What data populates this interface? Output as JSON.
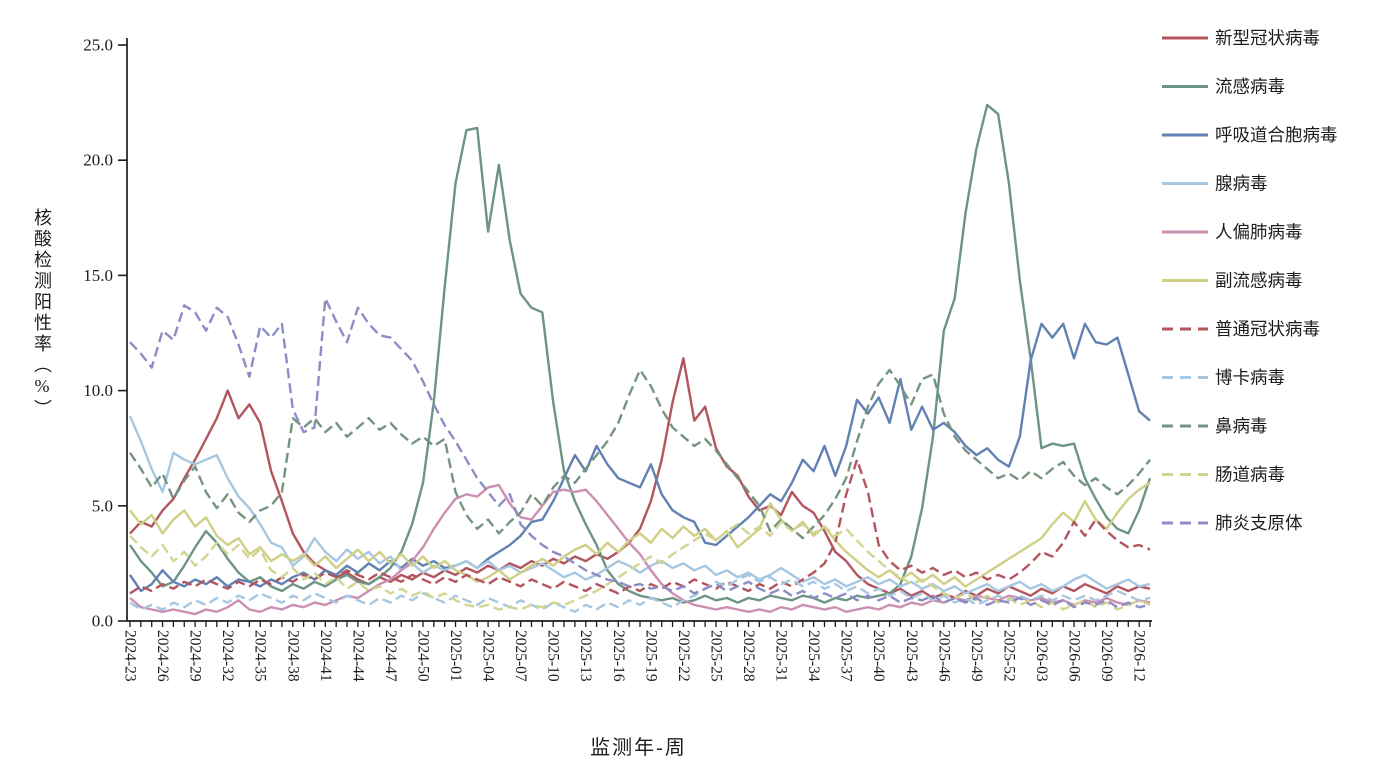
{
  "page": {
    "background": "#ffffff"
  },
  "chart_data": {
    "type": "line",
    "title": "",
    "xlabel": "监测年-周",
    "ylabel": "核酸检测阳性率（%）",
    "ylim": [
      0,
      25
    ],
    "yticks": [
      "0.0",
      "5.0",
      "10.0",
      "15.0",
      "20.0",
      "25.0"
    ],
    "grid": false,
    "legend_position": "right",
    "x_label_every": 3,
    "x": [
      "2024-23",
      "2024-24",
      "2024-25",
      "2024-26",
      "2024-27",
      "2024-28",
      "2024-29",
      "2024-30",
      "2024-31",
      "2024-32",
      "2024-33",
      "2024-34",
      "2024-35",
      "2024-36",
      "2024-37",
      "2024-38",
      "2024-39",
      "2024-40",
      "2024-41",
      "2024-42",
      "2024-43",
      "2024-44",
      "2024-45",
      "2024-46",
      "2024-47",
      "2024-48",
      "2024-49",
      "2024-50",
      "2024-51",
      "2024-52",
      "2025-01",
      "2025-02",
      "2025-03",
      "2025-04",
      "2025-05",
      "2025-06",
      "2025-07",
      "2025-08",
      "2025-09",
      "2025-10",
      "2025-11",
      "2025-12",
      "2025-13",
      "2025-14",
      "2025-15",
      "2025-16",
      "2025-17",
      "2025-18",
      "2025-19",
      "2025-20",
      "2025-21",
      "2025-22",
      "2025-23",
      "2025-24",
      "2025-25",
      "2025-26",
      "2025-27",
      "2025-28",
      "2025-29",
      "2025-30",
      "2025-31",
      "2025-32",
      "2025-33",
      "2025-34",
      "2025-35",
      "2025-36",
      "2025-37",
      "2025-38",
      "2025-39",
      "2025-40",
      "2025-41",
      "2025-42",
      "2025-43",
      "2025-44",
      "2025-45",
      "2025-46",
      "2025-47",
      "2025-48",
      "2025-49",
      "2025-50",
      "2025-51",
      "2025-52",
      "2026-01",
      "2026-02",
      "2026-03",
      "2026-04",
      "2026-05",
      "2026-06",
      "2026-07",
      "2026-08",
      "2026-09",
      "2026-10",
      "2026-11",
      "2026-12",
      "2026-13"
    ],
    "series": [
      {
        "id": "covid",
        "name": "新型冠状病毒",
        "color": "#b2555f",
        "dashed": false,
        "values": [
          3.8,
          4.3,
          4.1,
          4.8,
          5.3,
          6.2,
          7.0,
          7.9,
          8.8,
          10.0,
          8.8,
          9.4,
          8.6,
          6.5,
          5.2,
          3.8,
          3.0,
          2.5,
          2.2,
          1.9,
          2.1,
          1.8,
          1.6,
          1.9,
          1.7,
          2.0,
          1.8,
          2.1,
          1.9,
          2.2,
          2.0,
          2.3,
          2.1,
          2.4,
          2.2,
          2.5,
          2.3,
          2.6,
          2.4,
          2.7,
          2.5,
          2.8,
          2.6,
          2.9,
          2.7,
          3.0,
          3.4,
          4.0,
          5.2,
          7.0,
          9.5,
          11.4,
          8.7,
          9.3,
          7.5,
          6.7,
          6.3,
          5.4,
          4.8,
          5.0,
          4.6,
          5.6,
          5.0,
          4.7,
          3.9,
          3.0,
          2.6,
          2.0,
          1.6,
          1.4,
          1.2,
          1.4,
          1.1,
          1.3,
          1.0,
          1.2,
          1.0,
          1.3,
          1.1,
          1.4,
          1.2,
          1.5,
          1.3,
          1.1,
          1.4,
          1.2,
          1.5,
          1.3,
          1.6,
          1.4,
          1.2,
          1.5,
          1.3,
          1.5,
          1.4
        ]
      },
      {
        "id": "flu",
        "name": "流感病毒",
        "color": "#6d9484",
        "dashed": false,
        "values": [
          3.3,
          2.6,
          2.1,
          1.5,
          1.7,
          2.4,
          3.2,
          3.9,
          3.4,
          2.7,
          2.1,
          1.7,
          1.9,
          1.5,
          1.3,
          1.6,
          1.4,
          1.7,
          1.5,
          1.8,
          2.0,
          1.7,
          1.6,
          1.9,
          2.3,
          3.0,
          4.2,
          6.0,
          9.5,
          14.5,
          19.0,
          21.3,
          21.4,
          16.9,
          19.8,
          16.5,
          14.2,
          13.6,
          13.4,
          9.5,
          6.5,
          5.2,
          4.2,
          3.3,
          2.2,
          1.6,
          1.3,
          1.1,
          1.0,
          0.9,
          1.0,
          0.8,
          0.9,
          1.1,
          0.9,
          1.0,
          0.8,
          1.0,
          0.9,
          1.1,
          1.0,
          0.9,
          1.1,
          1.0,
          0.8,
          1.0,
          0.9,
          1.1,
          1.0,
          1.1,
          1.2,
          1.6,
          2.8,
          4.9,
          8.0,
          12.6,
          14.0,
          17.7,
          20.5,
          22.4,
          22.0,
          19.0,
          14.8,
          11.4,
          7.5,
          7.7,
          7.6,
          7.7,
          6.2,
          5.3,
          4.5,
          4.0,
          3.8,
          4.8,
          6.2
        ]
      },
      {
        "id": "rsv",
        "name": "呼吸道合胞病毒",
        "color": "#6081b1",
        "dashed": false,
        "values": [
          2.0,
          1.3,
          1.6,
          2.2,
          1.7,
          1.5,
          1.8,
          1.6,
          1.9,
          1.5,
          1.8,
          1.7,
          1.5,
          1.8,
          1.6,
          1.9,
          2.1,
          1.8,
          2.2,
          2.0,
          2.4,
          2.1,
          2.5,
          2.2,
          2.6,
          2.3,
          2.7,
          2.4,
          2.6,
          2.3,
          2.4,
          2.6,
          2.3,
          2.7,
          3.0,
          3.3,
          3.7,
          4.3,
          4.4,
          5.2,
          6.2,
          7.2,
          6.5,
          7.6,
          6.8,
          6.2,
          6.0,
          5.8,
          6.8,
          5.5,
          4.8,
          4.5,
          4.3,
          3.4,
          3.3,
          3.7,
          4.1,
          4.5,
          5.0,
          5.5,
          5.2,
          6.0,
          7.0,
          6.5,
          7.6,
          6.3,
          7.6,
          9.6,
          9.0,
          9.7,
          8.6,
          10.5,
          8.3,
          9.3,
          8.3,
          8.6,
          8.2,
          7.6,
          7.2,
          7.5,
          7.0,
          6.7,
          8.0,
          11.3,
          12.9,
          12.3,
          12.9,
          11.4,
          12.9,
          12.1,
          12.0,
          12.3,
          10.7,
          9.1,
          8.7
        ]
      },
      {
        "id": "adenovirus",
        "name": "腺病毒",
        "color": "#a6c7e2",
        "dashed": false,
        "values": [
          8.9,
          7.8,
          6.6,
          5.6,
          7.3,
          7.0,
          6.8,
          7.0,
          7.2,
          6.2,
          5.4,
          4.9,
          4.2,
          3.4,
          3.2,
          2.4,
          2.8,
          3.6,
          3.0,
          2.6,
          3.1,
          2.7,
          3.0,
          2.5,
          2.8,
          2.2,
          2.5,
          2.1,
          2.4,
          2.2,
          2.4,
          2.6,
          2.3,
          2.6,
          2.2,
          2.4,
          2.1,
          2.3,
          2.5,
          2.2,
          1.9,
          2.1,
          1.8,
          2.0,
          2.3,
          2.6,
          2.4,
          2.1,
          2.4,
          2.6,
          2.3,
          2.5,
          2.2,
          2.4,
          2.0,
          2.2,
          1.9,
          2.1,
          1.8,
          2.0,
          2.3,
          2.0,
          1.7,
          1.9,
          1.6,
          1.8,
          1.5,
          1.7,
          1.9,
          1.6,
          1.8,
          1.5,
          1.7,
          1.4,
          1.6,
          1.3,
          1.5,
          1.2,
          1.4,
          1.6,
          1.3,
          1.5,
          1.7,
          1.4,
          1.6,
          1.3,
          1.5,
          1.8,
          2.0,
          1.7,
          1.4,
          1.6,
          1.8,
          1.5,
          1.6
        ]
      },
      {
        "id": "hmpv",
        "name": "人偏肺病毒",
        "color": "#cb8fb1",
        "dashed": false,
        "values": [
          1.0,
          0.6,
          0.5,
          0.4,
          0.5,
          0.4,
          0.3,
          0.5,
          0.4,
          0.6,
          0.9,
          0.5,
          0.4,
          0.6,
          0.5,
          0.7,
          0.6,
          0.8,
          0.7,
          0.9,
          1.1,
          1.0,
          1.3,
          1.6,
          1.8,
          2.2,
          2.6,
          3.2,
          4.0,
          4.7,
          5.3,
          5.5,
          5.4,
          5.8,
          5.9,
          5.1,
          4.5,
          4.4,
          5.0,
          5.6,
          5.7,
          5.6,
          5.7,
          5.2,
          4.6,
          4.0,
          3.4,
          2.9,
          2.2,
          1.6,
          1.2,
          0.9,
          0.7,
          0.6,
          0.5,
          0.6,
          0.5,
          0.4,
          0.5,
          0.4,
          0.6,
          0.5,
          0.7,
          0.6,
          0.5,
          0.6,
          0.4,
          0.5,
          0.6,
          0.5,
          0.7,
          0.6,
          0.8,
          0.7,
          0.9,
          0.8,
          1.0,
          0.9,
          1.1,
          1.0,
          0.9,
          1.1,
          1.0,
          0.9,
          1.0,
          0.8,
          0.9,
          0.7,
          0.9,
          0.8,
          1.0,
          0.8,
          0.7,
          0.9,
          0.8
        ]
      },
      {
        "id": "parainfluenza",
        "name": "副流感病毒",
        "color": "#cfcf85",
        "dashed": false,
        "values": [
          4.8,
          4.2,
          4.6,
          3.8,
          4.4,
          4.8,
          4.1,
          4.5,
          3.7,
          3.3,
          3.6,
          2.9,
          3.2,
          2.6,
          2.9,
          2.6,
          2.9,
          2.4,
          2.8,
          2.3,
          2.7,
          3.1,
          2.6,
          3.0,
          2.5,
          2.9,
          2.4,
          2.8,
          2.3,
          2.6,
          2.2,
          2.0,
          1.7,
          1.9,
          2.2,
          1.8,
          2.1,
          2.4,
          2.7,
          2.4,
          2.8,
          3.1,
          3.3,
          2.9,
          3.4,
          3.0,
          3.5,
          3.8,
          3.4,
          4.0,
          3.6,
          4.1,
          3.7,
          4.0,
          3.5,
          3.9,
          3.2,
          3.6,
          4.0,
          5.1,
          4.4,
          3.9,
          4.3,
          3.7,
          4.1,
          3.5,
          3.0,
          2.6,
          2.2,
          1.9,
          2.2,
          1.8,
          2.1,
          1.7,
          2.0,
          1.6,
          1.9,
          1.5,
          1.8,
          2.1,
          2.4,
          2.7,
          3.0,
          3.3,
          3.6,
          4.2,
          4.7,
          4.3,
          5.2,
          4.4,
          4.0,
          4.7,
          5.3,
          5.7,
          6.0
        ]
      },
      {
        "id": "common-coronavirus",
        "name": "普通冠状病毒",
        "color": "#b2555f",
        "dashed": true,
        "values": [
          1.2,
          1.5,
          1.3,
          1.6,
          1.4,
          1.7,
          1.5,
          1.8,
          1.6,
          1.4,
          1.7,
          1.5,
          1.8,
          1.6,
          1.9,
          1.7,
          2.0,
          1.8,
          2.1,
          1.9,
          2.2,
          2.0,
          1.8,
          2.1,
          1.9,
          1.7,
          2.0,
          1.8,
          1.6,
          1.9,
          1.7,
          2.0,
          1.8,
          1.6,
          1.9,
          1.7,
          1.5,
          1.8,
          1.6,
          1.4,
          1.7,
          1.5,
          1.3,
          1.6,
          1.4,
          1.2,
          1.5,
          1.3,
          1.6,
          1.4,
          1.7,
          1.5,
          1.8,
          1.6,
          1.4,
          1.7,
          1.5,
          1.3,
          1.6,
          1.4,
          1.7,
          1.5,
          1.8,
          2.1,
          2.5,
          3.4,
          5.5,
          7.0,
          5.6,
          3.3,
          2.6,
          2.2,
          2.4,
          2.1,
          2.3,
          2.0,
          2.2,
          1.9,
          2.1,
          1.8,
          2.0,
          1.8,
          2.1,
          2.5,
          3.0,
          2.8,
          3.4,
          4.3,
          3.7,
          4.4,
          3.9,
          3.5,
          3.2,
          3.3,
          3.1
        ]
      },
      {
        "id": "bocavirus",
        "name": "博卡病毒",
        "color": "#a6c7e2",
        "dashed": true,
        "values": [
          0.8,
          0.5,
          0.7,
          0.5,
          0.8,
          0.6,
          0.9,
          0.7,
          1.0,
          0.8,
          1.1,
          0.9,
          1.2,
          1.0,
          0.8,
          1.1,
          0.9,
          1.2,
          1.0,
          0.8,
          1.1,
          0.9,
          0.7,
          1.0,
          0.8,
          1.1,
          0.9,
          1.2,
          1.0,
          0.8,
          1.1,
          0.9,
          0.7,
          1.0,
          0.8,
          0.6,
          0.9,
          0.7,
          0.5,
          0.8,
          0.6,
          0.4,
          0.7,
          0.5,
          0.8,
          0.6,
          0.9,
          0.7,
          1.0,
          0.8,
          0.6,
          0.9,
          1.1,
          1.4,
          1.7,
          1.5,
          1.8,
          2.0,
          1.7,
          1.9,
          1.6,
          1.8,
          1.5,
          1.7,
          1.4,
          1.6,
          1.3,
          1.5,
          1.2,
          1.4,
          1.1,
          1.3,
          1.0,
          1.2,
          0.9,
          1.1,
          0.8,
          1.0,
          0.7,
          0.9,
          1.1,
          0.9,
          1.1,
          0.9,
          1.1,
          0.9,
          1.1,
          0.9,
          1.1,
          0.9,
          1.1,
          1.3,
          1.1,
          0.9,
          1.0
        ]
      },
      {
        "id": "rhinovirus",
        "name": "鼻病毒",
        "color": "#74947f",
        "dashed": true,
        "values": [
          7.3,
          6.6,
          5.8,
          6.4,
          5.3,
          6.1,
          6.7,
          5.6,
          4.9,
          5.5,
          4.7,
          4.3,
          4.8,
          5.0,
          5.6,
          8.8,
          8.4,
          8.8,
          8.2,
          8.6,
          8.0,
          8.4,
          8.8,
          8.3,
          8.6,
          8.1,
          7.7,
          8.0,
          7.6,
          7.9,
          5.6,
          4.6,
          4.0,
          4.4,
          3.8,
          4.3,
          4.7,
          5.5,
          5.0,
          5.8,
          6.3,
          6.0,
          6.6,
          7.2,
          7.8,
          8.6,
          9.8,
          10.9,
          10.2,
          9.2,
          8.4,
          8.0,
          7.6,
          7.9,
          7.4,
          6.8,
          6.2,
          5.6,
          5.0,
          3.9,
          4.4,
          4.0,
          3.6,
          4.1,
          4.6,
          5.3,
          6.2,
          7.8,
          9.3,
          10.3,
          10.9,
          10.2,
          9.4,
          10.5,
          10.7,
          9.0,
          8.0,
          7.4,
          7.0,
          6.6,
          6.2,
          6.4,
          6.1,
          6.5,
          6.2,
          6.6,
          6.9,
          6.3,
          5.9,
          6.2,
          5.8,
          5.5,
          5.9,
          6.4,
          7.0
        ]
      },
      {
        "id": "enterovirus",
        "name": "肠道病毒",
        "color": "#d2d58f",
        "dashed": true,
        "values": [
          3.7,
          3.2,
          2.8,
          3.3,
          2.6,
          3.0,
          2.4,
          2.8,
          3.4,
          2.9,
          3.3,
          2.7,
          3.1,
          2.2,
          1.9,
          2.3,
          1.8,
          2.1,
          1.6,
          1.9,
          1.4,
          1.7,
          1.3,
          1.5,
          1.2,
          1.4,
          1.1,
          1.3,
          1.0,
          1.2,
          0.9,
          0.7,
          0.6,
          0.7,
          0.5,
          0.6,
          0.5,
          0.7,
          0.6,
          0.8,
          0.7,
          0.9,
          1.1,
          1.3,
          1.6,
          1.9,
          2.2,
          2.5,
          2.8,
          2.5,
          2.9,
          3.2,
          3.5,
          3.8,
          3.5,
          3.9,
          4.2,
          3.8,
          4.1,
          3.7,
          4.3,
          3.9,
          4.2,
          3.8,
          4.1,
          3.7,
          4.0,
          3.5,
          3.0,
          2.6,
          2.2,
          1.9,
          1.6,
          1.8,
          1.5,
          1.2,
          1.0,
          1.2,
          0.9,
          1.1,
          0.8,
          1.0,
          0.7,
          0.9,
          0.6,
          0.8,
          0.5,
          0.7,
          0.9,
          0.6,
          0.8,
          0.5,
          0.7,
          0.9,
          0.7
        ]
      },
      {
        "id": "mycoplasma",
        "name": "肺炎支原体",
        "color": "#8d8dc5",
        "dashed": true,
        "values": [
          12.1,
          11.6,
          11.0,
          12.6,
          12.2,
          13.7,
          13.4,
          12.6,
          13.6,
          13.2,
          12.0,
          10.6,
          12.8,
          12.3,
          12.9,
          9.2,
          8.2,
          8.4,
          14.0,
          13.0,
          12.1,
          13.6,
          12.9,
          12.4,
          12.3,
          11.8,
          11.3,
          10.4,
          9.4,
          8.5,
          7.8,
          7.0,
          6.2,
          5.6,
          5.0,
          5.5,
          4.2,
          3.7,
          3.3,
          3.0,
          2.8,
          2.5,
          2.2,
          2.0,
          1.8,
          1.7,
          1.5,
          1.6,
          1.4,
          1.5,
          1.3,
          1.5,
          1.2,
          1.4,
          1.6,
          1.3,
          1.5,
          1.7,
          1.4,
          1.2,
          1.4,
          1.1,
          1.3,
          1.0,
          1.2,
          1.0,
          1.2,
          0.9,
          1.1,
          0.9,
          1.1,
          0.8,
          1.0,
          0.9,
          1.1,
          0.8,
          1.0,
          0.8,
          1.0,
          0.7,
          0.9,
          0.8,
          1.0,
          0.7,
          0.9,
          0.7,
          0.9,
          0.6,
          0.8,
          0.7,
          0.9,
          0.6,
          0.8,
          0.6,
          0.7
        ]
      }
    ]
  }
}
